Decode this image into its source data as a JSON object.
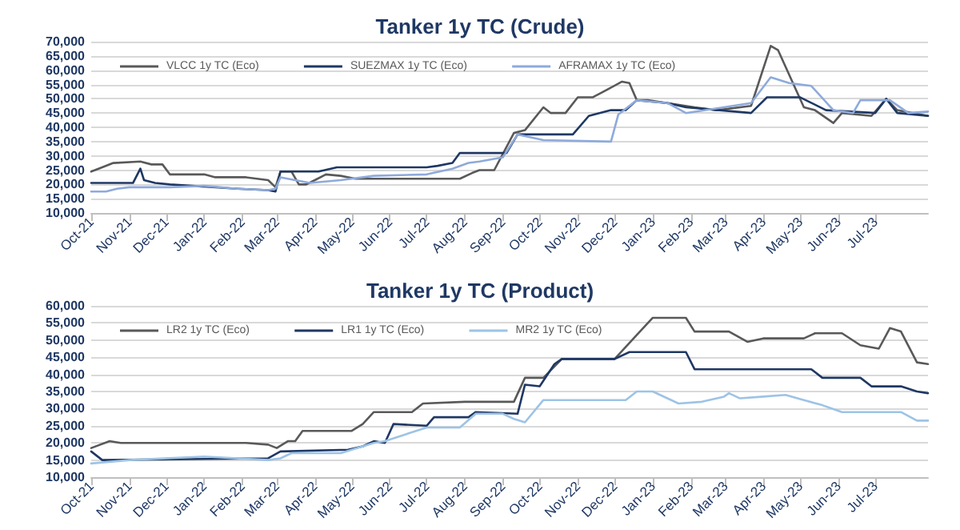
{
  "chart_data": [
    {
      "type": "line",
      "title": "Tanker 1y TC (Crude)",
      "grid": "y",
      "legend": "top",
      "marker": "none",
      "xlim": [
        "2021-10-01",
        "2023-08-13"
      ],
      "xticks": [
        {
          "value": "2021-10-01",
          "label": "Oct-21"
        },
        {
          "value": "2021-11-01",
          "label": "Nov-21"
        },
        {
          "value": "2021-12-01",
          "label": "Dec-21"
        },
        {
          "value": "2022-01-01",
          "label": "Jan-22"
        },
        {
          "value": "2022-02-01",
          "label": "Feb-22"
        },
        {
          "value": "2022-03-01",
          "label": "Mar-22"
        },
        {
          "value": "2022-04-01",
          "label": "Apr-22"
        },
        {
          "value": "2022-05-01",
          "label": "May-22"
        },
        {
          "value": "2022-06-01",
          "label": "Jun-22"
        },
        {
          "value": "2022-07-01",
          "label": "Jul-22"
        },
        {
          "value": "2022-08-01",
          "label": "Aug-22"
        },
        {
          "value": "2022-09-01",
          "label": "Sep-22"
        },
        {
          "value": "2022-10-01",
          "label": "Oct-22"
        },
        {
          "value": "2022-11-01",
          "label": "Nov-22"
        },
        {
          "value": "2022-12-01",
          "label": "Dec-22"
        },
        {
          "value": "2023-01-01",
          "label": "Jan-23"
        },
        {
          "value": "2023-02-01",
          "label": "Feb-23"
        },
        {
          "value": "2023-03-01",
          "label": "Mar-23"
        },
        {
          "value": "2023-04-01",
          "label": "Apr-23"
        },
        {
          "value": "2023-05-01",
          "label": "May-23"
        },
        {
          "value": "2023-06-01",
          "label": "Jun-23"
        },
        {
          "value": "2023-07-01",
          "label": "Jul-23"
        }
      ],
      "ylim": [
        10000,
        70000
      ],
      "yticks": [
        {
          "value": 10000,
          "label": "10,000"
        },
        {
          "value": 15000,
          "label": "15,000"
        },
        {
          "value": 20000,
          "label": "20,000"
        },
        {
          "value": 25000,
          "label": "25,000"
        },
        {
          "value": 30000,
          "label": "30,000"
        },
        {
          "value": 35000,
          "label": "35,000"
        },
        {
          "value": 40000,
          "label": "40,000"
        },
        {
          "value": 45000,
          "label": "45,000"
        },
        {
          "value": 50000,
          "label": "50,000"
        },
        {
          "value": 55000,
          "label": "55,000"
        },
        {
          "value": 60000,
          "label": "60,000"
        },
        {
          "value": 65000,
          "label": "65,000"
        },
        {
          "value": 70000,
          "label": "70,000"
        }
      ],
      "series": [
        {
          "name": "VLCC 1y TC (Eco)",
          "color": "#595959",
          "x": [
            "2021-10-01",
            "2021-10-07",
            "2021-10-19",
            "2021-11-10",
            "2021-11-19",
            "2021-11-28",
            "2021-12-04",
            "2022-01-01",
            "2022-01-10",
            "2022-02-04",
            "2022-02-22",
            "2022-02-28",
            "2022-03-04",
            "2022-03-13",
            "2022-03-19",
            "2022-03-25",
            "2022-04-01",
            "2022-04-10",
            "2022-04-22",
            "2022-05-04",
            "2022-07-28",
            "2022-08-07",
            "2022-08-13",
            "2022-08-25",
            "2022-09-10",
            "2022-09-19",
            "2022-10-04",
            "2022-10-10",
            "2022-10-22",
            "2022-11-01",
            "2022-11-13",
            "2022-11-22",
            "2022-12-07",
            "2022-12-13",
            "2022-12-19",
            "2022-12-28",
            "2023-02-04",
            "2023-02-22",
            "2023-03-22",
            "2023-04-07",
            "2023-04-13",
            "2023-05-04",
            "2023-05-13",
            "2023-05-28",
            "2023-06-04",
            "2023-06-28",
            "2023-07-10",
            "2023-07-19",
            "2023-08-13"
          ],
          "values": [
            24500,
            25500,
            27500,
            28000,
            27000,
            27000,
            23500,
            23500,
            22500,
            22500,
            21500,
            19000,
            24500,
            24500,
            20000,
            20000,
            21500,
            23500,
            23000,
            22000,
            22000,
            24000,
            25000,
            25000,
            38000,
            39000,
            47000,
            45000,
            45000,
            50500,
            50500,
            52500,
            56000,
            55500,
            49500,
            49500,
            47000,
            46000,
            47500,
            68500,
            67000,
            47000,
            46000,
            41500,
            45000,
            44000,
            50000,
            46000,
            44000
          ]
        },
        {
          "name": "SUEZMAX 1y TC (Eco)",
          "color": "#1f3864",
          "x": [
            "2021-10-01",
            "2021-11-04",
            "2021-11-10",
            "2021-11-13",
            "2021-11-22",
            "2021-12-04",
            "2022-01-28",
            "2022-02-22",
            "2022-02-28",
            "2022-03-04",
            "2022-04-04",
            "2022-04-19",
            "2022-07-01",
            "2022-07-10",
            "2022-07-22",
            "2022-07-28",
            "2022-09-04",
            "2022-09-13",
            "2022-10-28",
            "2022-11-10",
            "2022-11-28",
            "2022-12-10",
            "2022-12-19",
            "2023-01-13",
            "2023-01-28",
            "2023-03-22",
            "2023-04-04",
            "2023-05-01",
            "2023-05-22",
            "2023-07-01",
            "2023-07-10",
            "2023-07-19",
            "2023-08-13"
          ],
          "values": [
            20500,
            20500,
            25500,
            21500,
            20500,
            20000,
            18500,
            18000,
            17500,
            24500,
            24500,
            26000,
            26000,
            26500,
            27500,
            31000,
            31000,
            37500,
            37500,
            44000,
            46000,
            46000,
            49500,
            48500,
            47000,
            45000,
            50500,
            50500,
            46000,
            45000,
            50000,
            45000,
            44000
          ]
        },
        {
          "name": "AFRAMAX 1y TC (Eco)",
          "color": "#8eaadb",
          "x": [
            "2021-10-01",
            "2021-10-13",
            "2021-10-22",
            "2021-11-01",
            "2021-12-04",
            "2022-01-01",
            "2022-01-28",
            "2022-02-22",
            "2022-02-28",
            "2022-03-04",
            "2022-03-28",
            "2022-04-22",
            "2022-05-19",
            "2022-07-01",
            "2022-07-22",
            "2022-08-04",
            "2022-08-13",
            "2022-09-01",
            "2022-09-13",
            "2022-10-04",
            "2022-11-28",
            "2022-12-04",
            "2022-12-19",
            "2023-01-13",
            "2023-01-28",
            "2023-03-22",
            "2023-04-07",
            "2023-04-22",
            "2023-05-10",
            "2023-05-28",
            "2023-06-13",
            "2023-06-19",
            "2023-07-13",
            "2023-07-28",
            "2023-08-13"
          ],
          "values": [
            17500,
            17500,
            18500,
            19000,
            19000,
            19500,
            18500,
            18000,
            18500,
            22500,
            20500,
            21500,
            23000,
            23500,
            25500,
            27500,
            28000,
            29500,
            37500,
            35500,
            35000,
            44500,
            49500,
            48500,
            45000,
            48500,
            57500,
            55500,
            54500,
            46000,
            45000,
            49500,
            49500,
            45000,
            45500
          ]
        }
      ]
    },
    {
      "type": "line",
      "title": "Tanker 1y TC (Product)",
      "grid": "y",
      "legend": "top",
      "marker": "none",
      "xlim": [
        "2021-10-01",
        "2023-08-13"
      ],
      "xticks": [
        {
          "value": "2021-10-01",
          "label": "Oct-21"
        },
        {
          "value": "2021-11-01",
          "label": "Nov-21"
        },
        {
          "value": "2021-12-01",
          "label": "Dec-21"
        },
        {
          "value": "2022-01-01",
          "label": "Jan-22"
        },
        {
          "value": "2022-02-01",
          "label": "Feb-22"
        },
        {
          "value": "2022-03-01",
          "label": "Mar-22"
        },
        {
          "value": "2022-04-01",
          "label": "Apr-22"
        },
        {
          "value": "2022-05-01",
          "label": "May-22"
        },
        {
          "value": "2022-06-01",
          "label": "Jun-22"
        },
        {
          "value": "2022-07-01",
          "label": "Jul-22"
        },
        {
          "value": "2022-08-01",
          "label": "Aug-22"
        },
        {
          "value": "2022-09-01",
          "label": "Sep-22"
        },
        {
          "value": "2022-10-01",
          "label": "Oct-22"
        },
        {
          "value": "2022-11-01",
          "label": "Nov-22"
        },
        {
          "value": "2022-12-01",
          "label": "Dec-22"
        },
        {
          "value": "2023-01-01",
          "label": "Jan-23"
        },
        {
          "value": "2023-02-01",
          "label": "Feb-23"
        },
        {
          "value": "2023-03-01",
          "label": "Mar-23"
        },
        {
          "value": "2023-04-01",
          "label": "Apr-23"
        },
        {
          "value": "2023-05-01",
          "label": "May-23"
        },
        {
          "value": "2023-06-01",
          "label": "Jun-23"
        },
        {
          "value": "2023-07-01",
          "label": "Jul-23"
        }
      ],
      "ylim": [
        10000,
        60000
      ],
      "yticks": [
        {
          "value": 10000,
          "label": "10,000"
        },
        {
          "value": 15000,
          "label": "15,000"
        },
        {
          "value": 20000,
          "label": "20,000"
        },
        {
          "value": 25000,
          "label": "25,000"
        },
        {
          "value": 30000,
          "label": "30,000"
        },
        {
          "value": 35000,
          "label": "35,000"
        },
        {
          "value": 40000,
          "label": "40,000"
        },
        {
          "value": 45000,
          "label": "45,000"
        },
        {
          "value": 50000,
          "label": "50,000"
        },
        {
          "value": 55000,
          "label": "55,000"
        },
        {
          "value": 60000,
          "label": "60,000"
        }
      ],
      "series": [
        {
          "name": "LR2 1y TC (Eco)",
          "color": "#595959",
          "x": [
            "2021-10-01",
            "2021-10-16",
            "2021-10-25",
            "2022-02-04",
            "2022-02-22",
            "2022-03-01",
            "2022-03-10",
            "2022-03-16",
            "2022-03-22",
            "2022-05-01",
            "2022-05-10",
            "2022-05-19",
            "2022-06-19",
            "2022-06-28",
            "2022-08-01",
            "2022-09-10",
            "2022-09-19",
            "2022-10-04",
            "2022-10-19",
            "2022-12-01",
            "2022-12-19",
            "2023-01-01",
            "2023-01-28",
            "2023-02-04",
            "2023-03-04",
            "2023-03-19",
            "2023-04-01",
            "2023-05-04",
            "2023-05-13",
            "2023-06-04",
            "2023-06-19",
            "2023-07-04",
            "2023-07-13",
            "2023-07-22",
            "2023-08-04",
            "2023-08-13"
          ],
          "values": [
            18500,
            20500,
            20000,
            20000,
            19500,
            18500,
            20500,
            20500,
            23500,
            23500,
            25500,
            29000,
            29000,
            31500,
            32000,
            32000,
            39000,
            39000,
            44500,
            44500,
            51500,
            56500,
            56500,
            52500,
            52500,
            49500,
            50500,
            50500,
            52000,
            52000,
            48500,
            47500,
            53500,
            52500,
            43500,
            43000
          ]
        },
        {
          "name": "LR1 1y TC (Eco)",
          "color": "#1f3864",
          "x": [
            "2021-10-01",
            "2021-10-10",
            "2022-02-22",
            "2022-03-04",
            "2022-04-28",
            "2022-05-10",
            "2022-05-19",
            "2022-05-28",
            "2022-06-04",
            "2022-07-01",
            "2022-07-07",
            "2022-08-04",
            "2022-08-10",
            "2022-09-13",
            "2022-09-19",
            "2022-10-01",
            "2022-10-13",
            "2022-10-19",
            "2022-12-01",
            "2022-12-13",
            "2023-01-28",
            "2023-02-04",
            "2023-05-10",
            "2023-05-19",
            "2023-06-19",
            "2023-06-28",
            "2023-07-22",
            "2023-08-04",
            "2023-08-13"
          ],
          "values": [
            17500,
            15000,
            15500,
            17500,
            18000,
            19000,
            20500,
            20000,
            25500,
            25000,
            27500,
            27500,
            29000,
            28500,
            37000,
            36500,
            43000,
            44500,
            44500,
            46500,
            46500,
            41500,
            41500,
            39000,
            39000,
            36500,
            36500,
            35000,
            34500
          ]
        },
        {
          "name": "MR2 1y TC (Eco)",
          "color": "#9dc3e6",
          "x": [
            "2021-10-01",
            "2021-11-01",
            "2022-01-01",
            "2022-02-22",
            "2022-03-04",
            "2022-03-13",
            "2022-04-22",
            "2022-05-19",
            "2022-05-28",
            "2022-07-01",
            "2022-07-28",
            "2022-08-10",
            "2022-09-01",
            "2022-09-10",
            "2022-09-19",
            "2022-10-04",
            "2022-12-10",
            "2022-12-19",
            "2023-01-01",
            "2023-01-22",
            "2023-02-10",
            "2023-02-28",
            "2023-03-04",
            "2023-03-13",
            "2023-04-01",
            "2023-04-19",
            "2023-05-04",
            "2023-05-19",
            "2023-06-04",
            "2023-07-22",
            "2023-08-04",
            "2023-08-13"
          ],
          "values": [
            14000,
            15000,
            16000,
            15000,
            15500,
            17000,
            17000,
            20000,
            20500,
            24500,
            24500,
            28500,
            28500,
            27000,
            26000,
            32500,
            32500,
            35000,
            35000,
            31500,
            32000,
            33500,
            34500,
            33000,
            33500,
            34000,
            32500,
            31000,
            29000,
            29000,
            26500,
            26500
          ]
        }
      ]
    }
  ]
}
